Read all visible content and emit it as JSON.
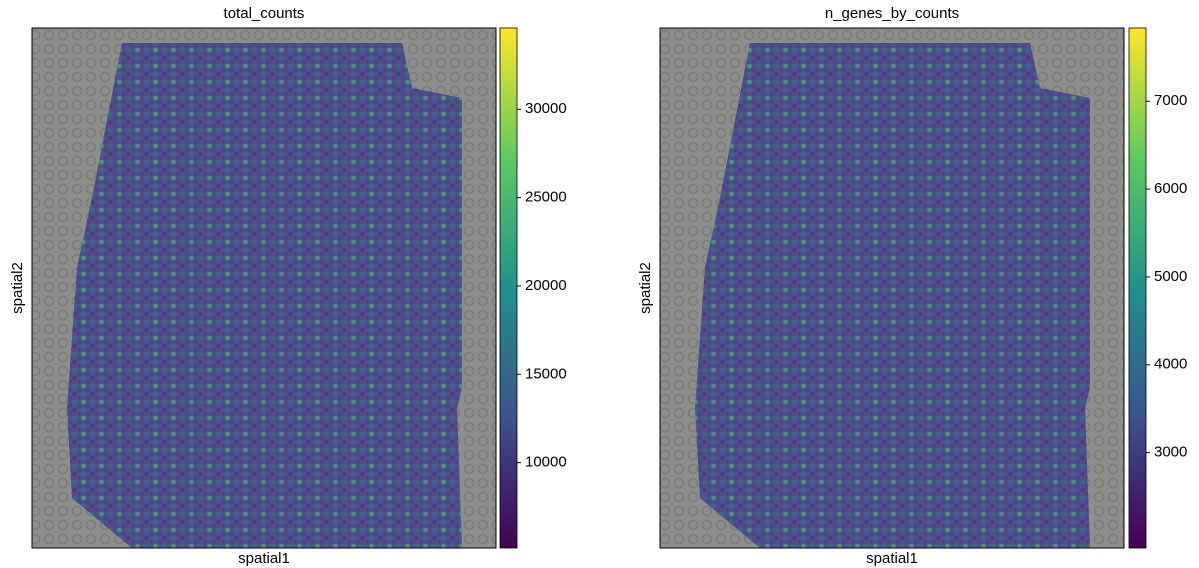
{
  "chart_data": [
    {
      "type": "spatial",
      "title": "total_counts",
      "xlabel": "spatial1",
      "ylabel": "spatial2",
      "colormap": [
        "#440154",
        "#3b528b",
        "#21918c",
        "#5ec962",
        "#fde725"
      ],
      "clim": [
        5170,
        34600
      ],
      "cticks": [
        10000,
        15000,
        20000,
        25000,
        30000
      ]
    },
    {
      "type": "spatial",
      "title": "n_genes_by_counts",
      "xlabel": "spatial1",
      "ylabel": "spatial2",
      "colormap": [
        "#440154",
        "#3b528b",
        "#21918c",
        "#5ec962",
        "#fde725"
      ],
      "clim": [
        1914,
        7834
      ],
      "cticks": [
        3000,
        4000,
        5000,
        6000,
        7000
      ]
    }
  ]
}
